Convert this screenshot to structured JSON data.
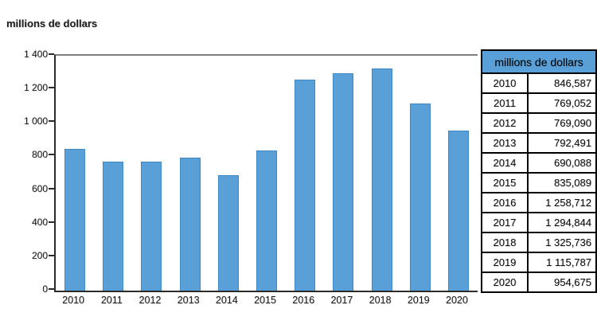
{
  "title": "millions de dollars",
  "colors": {
    "bar": "#58a0d7",
    "bar_border": "#4288c2",
    "table_header_bg": "#58a0d7",
    "axis": "#2b2b2b",
    "plot_top_border": "#7f7f7f",
    "background": "#ffffff"
  },
  "chart_data": {
    "type": "bar",
    "title": "millions de dollars",
    "xlabel": "",
    "ylabel": "millions de dollars",
    "ylim": [
      0,
      1400
    ],
    "grid": false,
    "legend": null,
    "categories": [
      "2010",
      "2011",
      "2012",
      "2013",
      "2014",
      "2015",
      "2016",
      "2017",
      "2018",
      "2019",
      "2020"
    ],
    "values": [
      846.587,
      769.052,
      769.09,
      792.491,
      690.088,
      835.089,
      1258.712,
      1294.844,
      1325.736,
      1115.787,
      954.675
    ],
    "ytick_labels": [
      "1 400",
      "1 200",
      "1 000",
      "800",
      "600",
      "400",
      "200",
      "0"
    ]
  },
  "table": {
    "header": "millions de dollars",
    "rows": [
      {
        "year": "2010",
        "value": "846,587"
      },
      {
        "year": "2011",
        "value": "769,052"
      },
      {
        "year": "2012",
        "value": "769,090"
      },
      {
        "year": "2013",
        "value": "792,491"
      },
      {
        "year": "2014",
        "value": "690,088"
      },
      {
        "year": "2015",
        "value": "835,089"
      },
      {
        "year": "2016",
        "value": "1 258,712"
      },
      {
        "year": "2017",
        "value": "1 294,844"
      },
      {
        "year": "2018",
        "value": "1 325,736"
      },
      {
        "year": "2019",
        "value": "1 115,787"
      },
      {
        "year": "2020",
        "value": "954,675"
      }
    ]
  }
}
